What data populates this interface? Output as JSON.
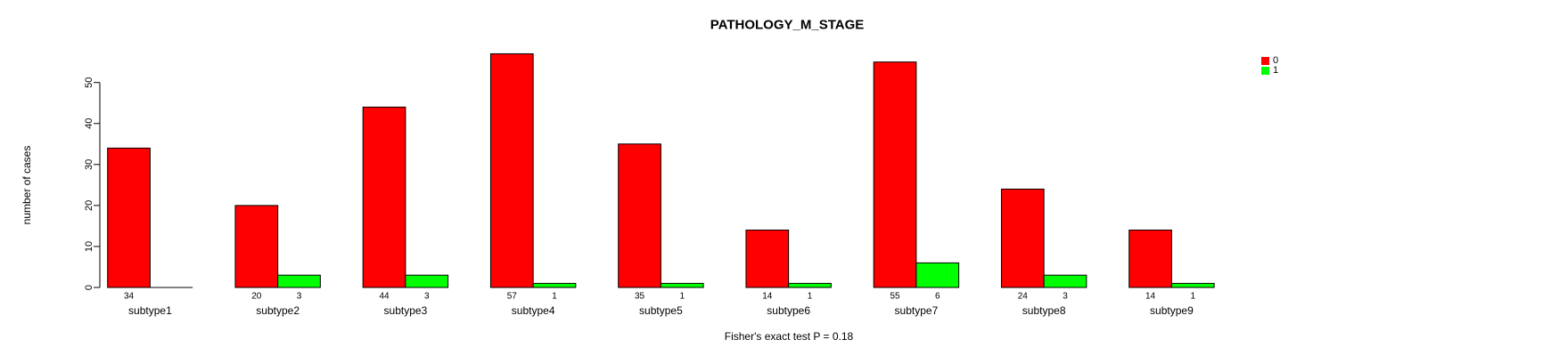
{
  "figure": {
    "title": "PATHOLOGY_M_STAGE",
    "note": "Fisher's exact test P = 0.18"
  },
  "chart_data": {
    "type": "bar",
    "title": "PATHOLOGY_M_STAGE",
    "xlabel": "",
    "ylabel": "number of cases",
    "ylim": [
      0,
      57
    ],
    "yticks": [
      0,
      10,
      20,
      30,
      40,
      50
    ],
    "grid": false,
    "legend_position": "top-right-outside",
    "categories": [
      "subtype1",
      "subtype2",
      "subtype3",
      "subtype4",
      "subtype5",
      "subtype6",
      "subtype7",
      "subtype8",
      "subtype9"
    ],
    "series": [
      {
        "name": "0",
        "color": "#ff0000",
        "values": [
          34,
          20,
          44,
          57,
          35,
          14,
          55,
          24,
          14
        ]
      },
      {
        "name": "1",
        "color": "#00ff00",
        "values": [
          0,
          3,
          3,
          1,
          1,
          1,
          6,
          3,
          1
        ]
      }
    ],
    "bar_value_labels": [
      [
        "34",
        ""
      ],
      [
        "20",
        "3"
      ],
      [
        "44",
        "3"
      ],
      [
        "57",
        "1"
      ],
      [
        "35",
        "1"
      ],
      [
        "14",
        "1"
      ],
      [
        "55",
        "6"
      ],
      [
        "24",
        "3"
      ],
      [
        "14",
        "1"
      ]
    ],
    "annotation": "Fisher's exact test P = 0.18"
  },
  "legend": {
    "entries": [
      {
        "label": "0",
        "color": "#ff0000"
      },
      {
        "label": "1",
        "color": "#00ff00"
      }
    ]
  },
  "colors": {
    "bar_border": "#000000",
    "axis": "#000000",
    "text": "#000000",
    "background": "#ffffff"
  }
}
